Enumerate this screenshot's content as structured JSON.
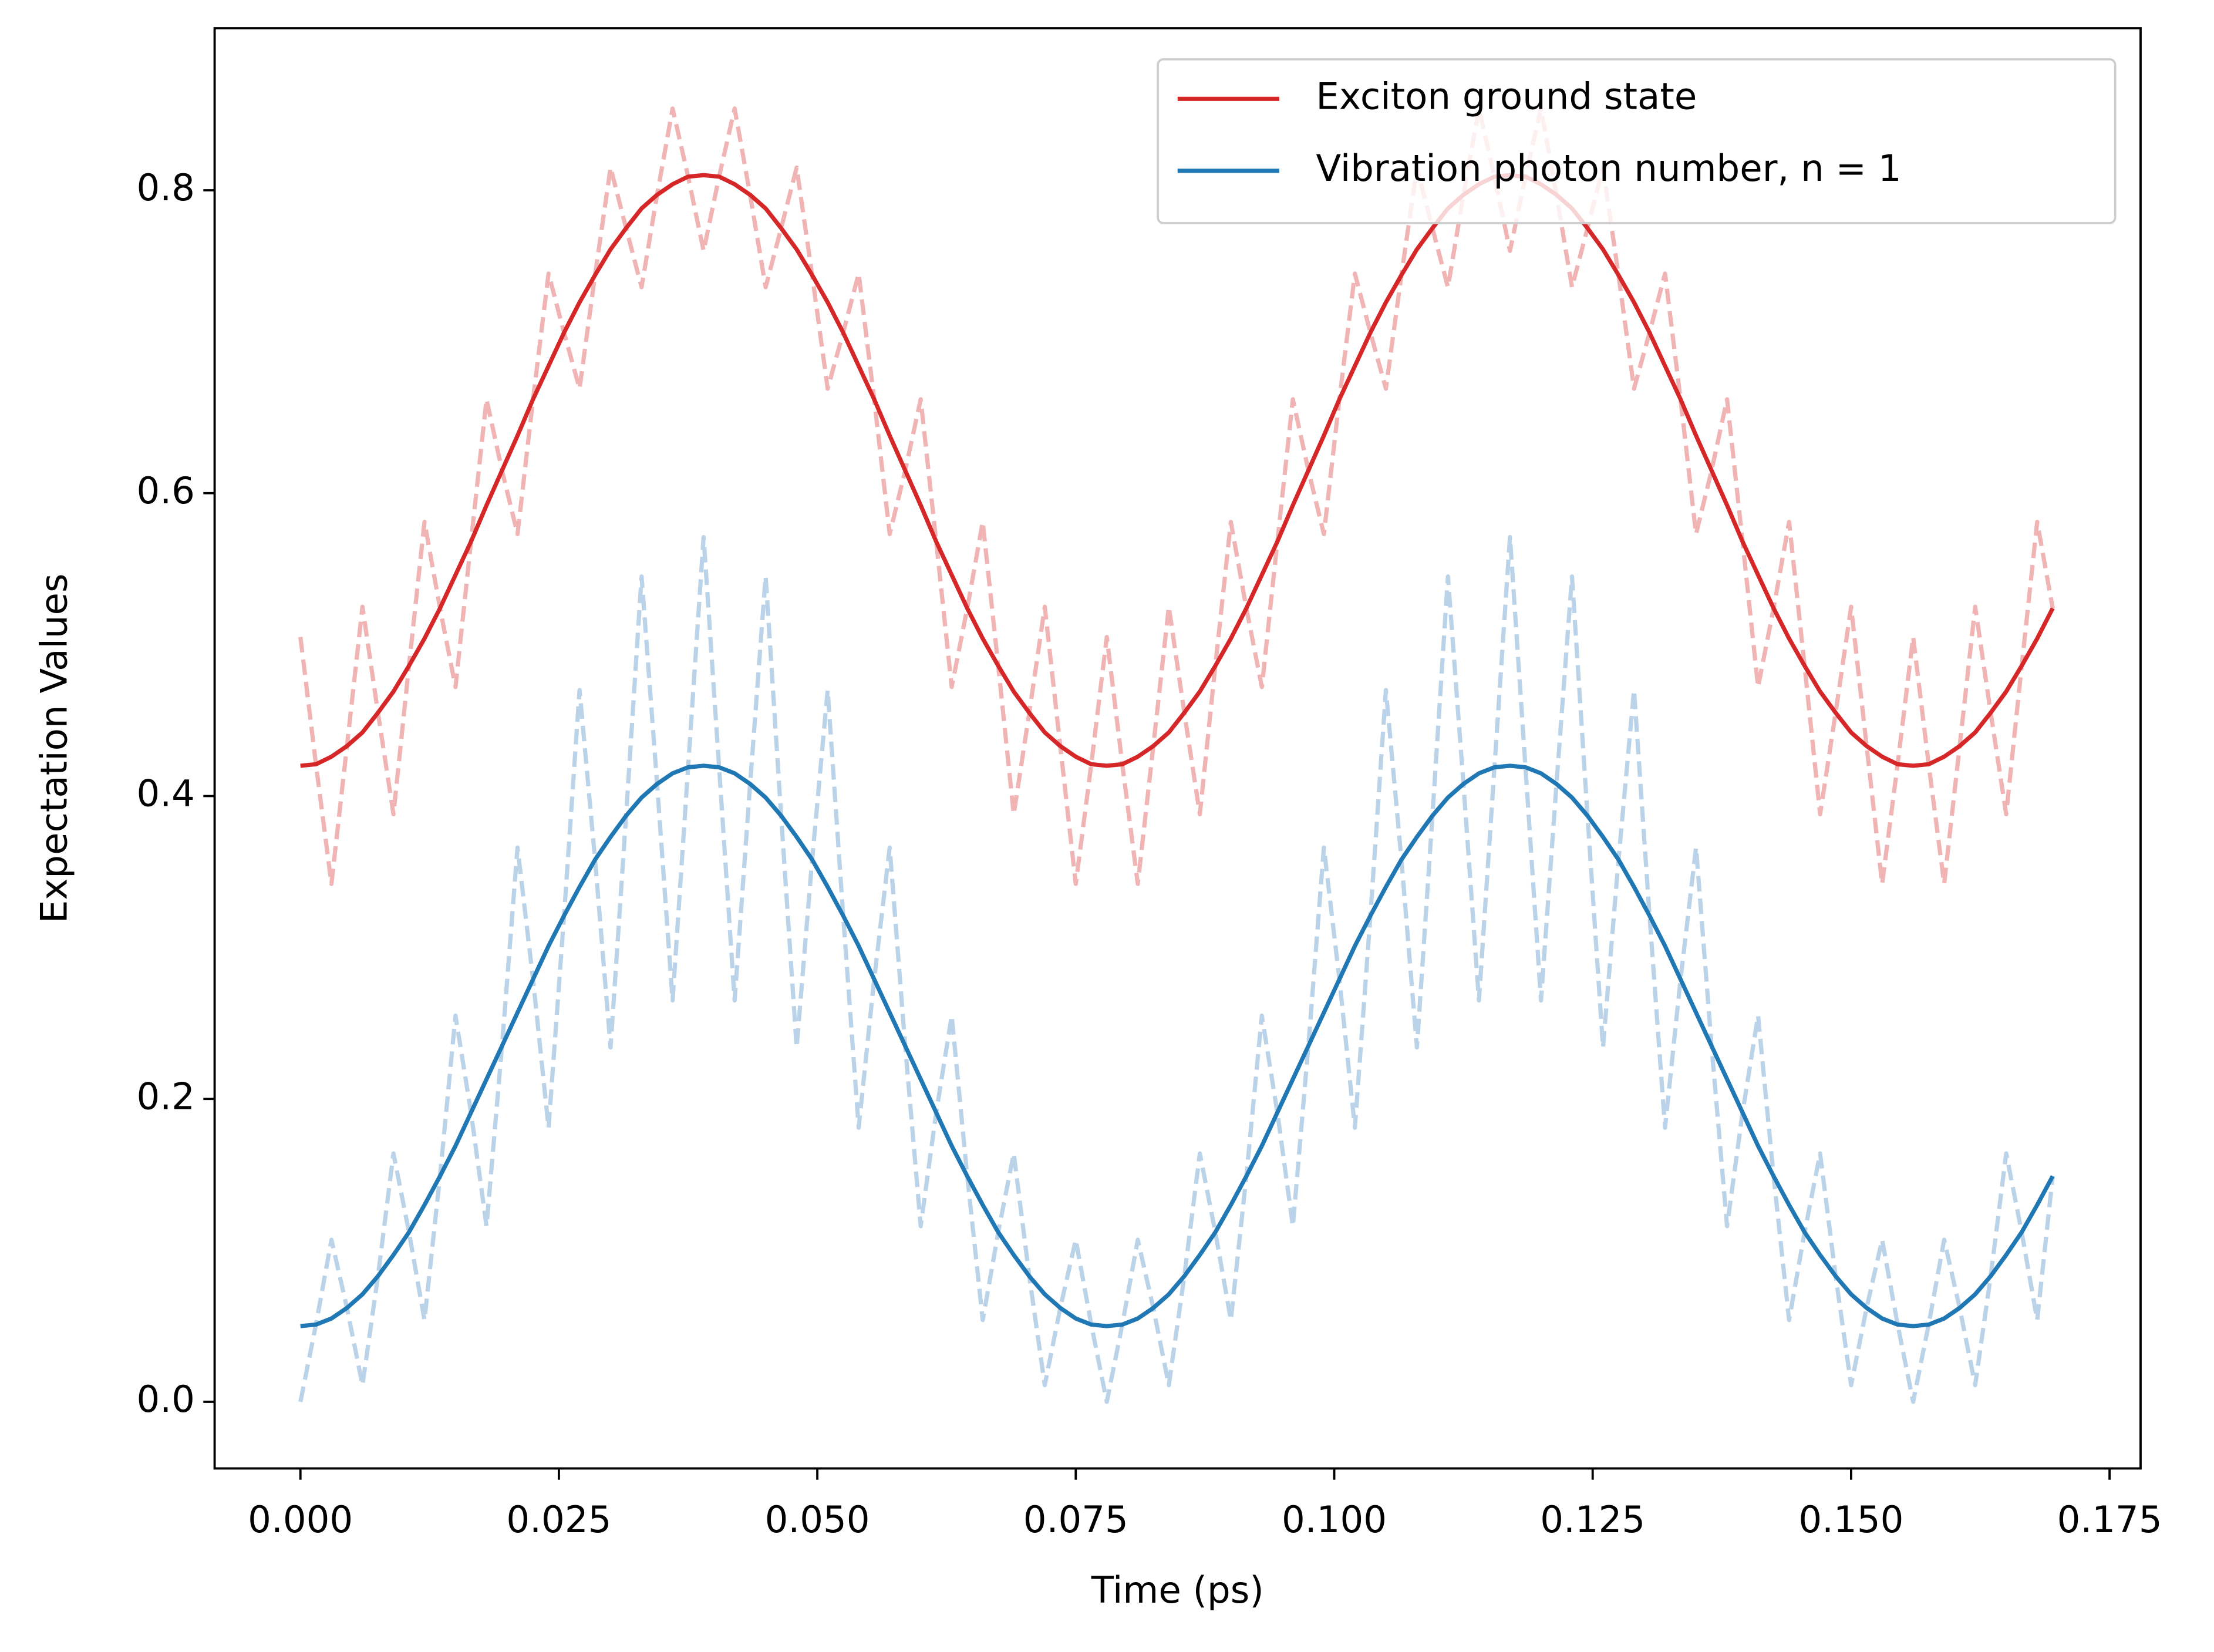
{
  "chart_data": {
    "type": "line",
    "xlabel": "Time (ps)",
    "ylabel": "Expectation Values",
    "xlim": [
      -0.0083,
      0.178
    ],
    "ylim": [
      -0.044,
      0.907
    ],
    "xticks": [
      {
        "value": 0,
        "label": "0.000"
      },
      0.025,
      {
        "value": 0.05,
        "label": "0.050"
      },
      0.075,
      {
        "value": 0.1,
        "label": "0.100"
      },
      0.125,
      {
        "value": 0.15,
        "label": "0.150"
      },
      0.175
    ],
    "yticks": [
      {
        "value": 0,
        "label": "0.0"
      },
      0.2,
      0.4,
      0.6,
      0.8
    ],
    "legend": "upper right",
    "x": [
      0,
      0.0015,
      0.003,
      0.0045,
      0.006,
      0.0075,
      0.009,
      0.0105,
      0.012,
      0.0135,
      0.015,
      0.0165,
      0.018,
      0.0195,
      0.021,
      0.0225,
      0.024,
      0.0255,
      0.027,
      0.0285,
      0.03,
      0.0315,
      0.033,
      0.0345,
      0.036,
      0.0375,
      0.039,
      0.0405,
      0.042,
      0.0435,
      0.045,
      0.0465,
      0.048,
      0.0495,
      0.051,
      0.0525,
      0.054,
      0.0555,
      0.057,
      0.0585,
      0.06,
      0.0615,
      0.063,
      0.0645,
      0.066,
      0.0675,
      0.069,
      0.0705,
      0.072,
      0.0735,
      0.075,
      0.0765,
      0.078,
      0.0795,
      0.081,
      0.0825,
      0.084,
      0.0855,
      0.087,
      0.0885,
      0.09,
      0.0915,
      0.093,
      0.0945,
      0.096,
      0.0975,
      0.099,
      0.1005,
      0.102,
      0.1035,
      0.105,
      0.1065,
      0.108,
      0.1095,
      0.111,
      0.1125,
      0.114,
      0.1155,
      0.117,
      0.1185,
      0.12,
      0.1215,
      0.123,
      0.1245,
      0.126,
      0.1275,
      0.129,
      0.1305,
      0.132,
      0.1335,
      0.135,
      0.1365,
      0.138,
      0.1395,
      0.141,
      0.1425,
      0.144,
      0.1455,
      0.147,
      0.1485,
      0.15,
      0.1515,
      0.153,
      0.1545,
      0.156,
      0.1575,
      0.159,
      0.1605,
      0.162,
      0.1635,
      0.165,
      0.1665,
      0.168,
      0.1695
    ],
    "series": [
      {
        "color": "#f0b4b5",
        "dashed": true,
        "values": [
          0.505,
          0.421,
          0.342,
          0.433,
          0.525,
          0.455,
          0.388,
          0.486,
          0.581,
          0.524,
          0.472,
          0.568,
          0.662,
          0.615,
          0.573,
          0.662,
          0.745,
          0.706,
          0.669,
          0.744,
          0.815,
          0.775,
          0.736,
          0.797,
          0.854,
          0.809,
          0.76,
          0.809,
          0.854,
          0.797,
          0.736,
          0.775,
          0.815,
          0.744,
          0.669,
          0.706,
          0.745,
          0.662,
          0.573,
          0.615,
          0.662,
          0.568,
          0.472,
          0.524,
          0.581,
          0.486,
          0.388,
          0.455,
          0.525,
          0.433,
          0.342,
          0.421,
          0.505,
          0.421,
          0.342,
          0.433,
          0.525,
          0.455,
          0.388,
          0.486,
          0.581,
          0.524,
          0.472,
          0.568,
          0.662,
          0.615,
          0.573,
          0.662,
          0.745,
          0.706,
          0.669,
          0.744,
          0.815,
          0.775,
          0.736,
          0.797,
          0.854,
          0.809,
          0.76,
          0.809,
          0.854,
          0.797,
          0.736,
          0.775,
          0.815,
          0.744,
          0.669,
          0.706,
          0.745,
          0.662,
          0.573,
          0.615,
          0.662,
          0.568,
          0.472,
          0.524,
          0.581,
          0.486,
          0.388,
          0.455,
          0.525,
          0.433,
          0.342,
          0.421,
          0.505,
          0.421,
          0.342,
          0.433,
          0.525,
          0.455,
          0.388,
          0.486,
          0.581,
          0.524
        ]
      },
      {
        "color": "#bad3e8",
        "dashed": true,
        "values": [
          0.0,
          0.051,
          0.107,
          0.062,
          0.011,
          0.083,
          0.164,
          0.112,
          0.054,
          0.149,
          0.255,
          0.191,
          0.116,
          0.235,
          0.366,
          0.279,
          0.181,
          0.321,
          0.47,
          0.358,
          0.234,
          0.387,
          0.545,
          0.408,
          0.265,
          0.419,
          0.571,
          0.419,
          0.265,
          0.408,
          0.545,
          0.387,
          0.234,
          0.358,
          0.47,
          0.321,
          0.181,
          0.279,
          0.366,
          0.235,
          0.116,
          0.191,
          0.255,
          0.149,
          0.054,
          0.112,
          0.164,
          0.083,
          0.011,
          0.062,
          0.107,
          0.051,
          0.0,
          0.051,
          0.107,
          0.062,
          0.011,
          0.083,
          0.164,
          0.112,
          0.054,
          0.149,
          0.255,
          0.191,
          0.116,
          0.235,
          0.366,
          0.279,
          0.181,
          0.321,
          0.47,
          0.358,
          0.234,
          0.387,
          0.545,
          0.408,
          0.265,
          0.419,
          0.571,
          0.419,
          0.265,
          0.408,
          0.545,
          0.387,
          0.234,
          0.358,
          0.47,
          0.321,
          0.181,
          0.279,
          0.366,
          0.235,
          0.116,
          0.191,
          0.255,
          0.149,
          0.054,
          0.112,
          0.164,
          0.083,
          0.011,
          0.062,
          0.107,
          0.051,
          0.0,
          0.051,
          0.107,
          0.062,
          0.011,
          0.083,
          0.164,
          0.112,
          0.054,
          0.149
        ]
      },
      {
        "name": "Exciton ground state",
        "color": "#d62728",
        "values": [
          0.42,
          0.421,
          0.426,
          0.433,
          0.442,
          0.455,
          0.469,
          0.486,
          0.504,
          0.524,
          0.546,
          0.568,
          0.592,
          0.615,
          0.638,
          0.662,
          0.684,
          0.706,
          0.726,
          0.744,
          0.761,
          0.775,
          0.788,
          0.797,
          0.804,
          0.809,
          0.81,
          0.809,
          0.804,
          0.797,
          0.788,
          0.775,
          0.761,
          0.744,
          0.726,
          0.706,
          0.684,
          0.662,
          0.638,
          0.615,
          0.592,
          0.568,
          0.546,
          0.524,
          0.504,
          0.486,
          0.469,
          0.455,
          0.442,
          0.433,
          0.426,
          0.421,
          0.42,
          0.421,
          0.426,
          0.433,
          0.442,
          0.455,
          0.469,
          0.486,
          0.504,
          0.524,
          0.546,
          0.568,
          0.592,
          0.615,
          0.638,
          0.662,
          0.684,
          0.706,
          0.726,
          0.744,
          0.761,
          0.775,
          0.788,
          0.797,
          0.804,
          0.809,
          0.81,
          0.809,
          0.804,
          0.797,
          0.788,
          0.775,
          0.761,
          0.744,
          0.726,
          0.706,
          0.684,
          0.662,
          0.638,
          0.615,
          0.592,
          0.568,
          0.546,
          0.524,
          0.504,
          0.486,
          0.469,
          0.455,
          0.442,
          0.433,
          0.426,
          0.421,
          0.42,
          0.421,
          0.426,
          0.433,
          0.442,
          0.455,
          0.469,
          0.486,
          0.504,
          0.524
        ]
      },
      {
        "name": "Vibration photon number, n = 1",
        "color": "#1f77b4",
        "values": [
          0.05,
          0.051,
          0.055,
          0.062,
          0.071,
          0.083,
          0.097,
          0.112,
          0.13,
          0.149,
          0.169,
          0.191,
          0.213,
          0.235,
          0.257,
          0.279,
          0.301,
          0.321,
          0.34,
          0.358,
          0.373,
          0.387,
          0.399,
          0.408,
          0.415,
          0.419,
          0.42,
          0.419,
          0.415,
          0.408,
          0.399,
          0.387,
          0.373,
          0.358,
          0.34,
          0.321,
          0.301,
          0.279,
          0.257,
          0.235,
          0.213,
          0.191,
          0.169,
          0.149,
          0.13,
          0.112,
          0.097,
          0.083,
          0.071,
          0.062,
          0.055,
          0.051,
          0.05,
          0.051,
          0.055,
          0.062,
          0.071,
          0.083,
          0.097,
          0.112,
          0.13,
          0.149,
          0.169,
          0.191,
          0.213,
          0.235,
          0.257,
          0.279,
          0.301,
          0.321,
          0.34,
          0.358,
          0.373,
          0.387,
          0.399,
          0.408,
          0.415,
          0.419,
          0.42,
          0.419,
          0.415,
          0.408,
          0.399,
          0.387,
          0.373,
          0.358,
          0.34,
          0.321,
          0.301,
          0.279,
          0.257,
          0.235,
          0.213,
          0.191,
          0.169,
          0.149,
          0.13,
          0.112,
          0.097,
          0.083,
          0.071,
          0.062,
          0.055,
          0.051,
          0.05,
          0.051,
          0.055,
          0.062,
          0.071,
          0.083,
          0.097,
          0.112,
          0.13,
          0.149
        ]
      }
    ]
  }
}
